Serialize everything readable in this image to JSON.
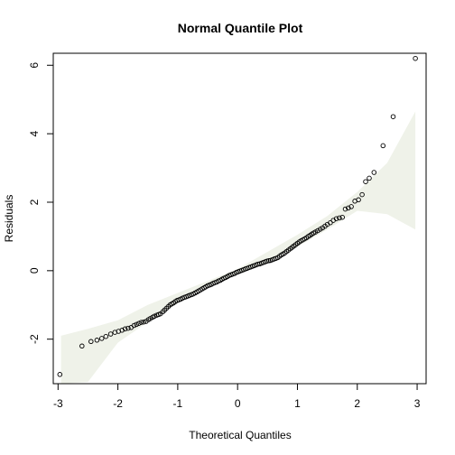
{
  "chart_data": {
    "type": "scatter",
    "title": "Normal Quantile Plot",
    "xlabel": "Theoretical Quantiles",
    "ylabel": "Residuals",
    "xlim": [
      -3.08,
      3.15
    ],
    "ylim": [
      -3.3,
      6.35
    ],
    "xticks": [
      -3,
      -2,
      -1,
      0,
      1,
      2,
      3
    ],
    "yticks": [
      -2,
      0,
      2,
      4,
      6
    ],
    "band_color": "#eff2e9",
    "point_color": "#000000",
    "envelope": {
      "x": [
        -2.95,
        -2.5,
        -2.0,
        -1.5,
        -1.0,
        -0.5,
        0.0,
        0.5,
        1.0,
        1.5,
        2.0,
        2.5,
        2.97
      ],
      "lower": [
        -3.3,
        -3.25,
        -2.1,
        -1.5,
        -0.95,
        -0.45,
        -0.1,
        0.25,
        0.7,
        1.2,
        1.75,
        1.65,
        1.2
      ],
      "upper": [
        -1.9,
        -1.7,
        -1.45,
        -1.0,
        -0.65,
        -0.3,
        0.05,
        0.55,
        1.05,
        1.6,
        2.3,
        3.15,
        4.65
      ]
    },
    "points": [
      [
        -2.97,
        -3.03
      ],
      [
        -2.6,
        -2.2
      ],
      [
        -2.45,
        -2.07
      ],
      [
        -2.35,
        -2.03
      ],
      [
        -2.27,
        -1.98
      ],
      [
        -2.2,
        -1.92
      ],
      [
        -2.12,
        -1.85
      ],
      [
        -2.05,
        -1.8
      ],
      [
        -1.99,
        -1.77
      ],
      [
        -1.93,
        -1.74
      ],
      [
        -1.88,
        -1.7
      ],
      [
        -1.83,
        -1.68
      ],
      [
        -1.78,
        -1.66
      ],
      [
        -1.73,
        -1.6
      ],
      [
        -1.69,
        -1.57
      ],
      [
        -1.65,
        -1.54
      ],
      [
        -1.61,
        -1.51
      ],
      [
        -1.57,
        -1.5
      ],
      [
        -1.53,
        -1.48
      ],
      [
        -1.49,
        -1.43
      ],
      [
        -1.46,
        -1.4
      ],
      [
        -1.42,
        -1.36
      ],
      [
        -1.39,
        -1.33
      ],
      [
        -1.35,
        -1.3
      ],
      [
        -1.32,
        -1.28
      ],
      [
        -1.29,
        -1.26
      ],
      [
        -1.25,
        -1.2
      ],
      [
        -1.22,
        -1.15
      ],
      [
        -1.19,
        -1.1
      ],
      [
        -1.16,
        -1.05
      ],
      [
        -1.13,
        -1.0
      ],
      [
        -1.1,
        -0.97
      ],
      [
        -1.07,
        -0.94
      ],
      [
        -1.04,
        -0.9
      ],
      [
        -1.01,
        -0.87
      ],
      [
        -0.98,
        -0.85
      ],
      [
        -0.95,
        -0.83
      ],
      [
        -0.92,
        -0.8
      ],
      [
        -0.89,
        -0.78
      ],
      [
        -0.86,
        -0.76
      ],
      [
        -0.83,
        -0.74
      ],
      [
        -0.8,
        -0.72
      ],
      [
        -0.77,
        -0.7
      ],
      [
        -0.74,
        -0.68
      ],
      [
        -0.71,
        -0.65
      ],
      [
        -0.68,
        -0.62
      ],
      [
        -0.65,
        -0.59
      ],
      [
        -0.62,
        -0.56
      ],
      [
        -0.59,
        -0.53
      ],
      [
        -0.56,
        -0.5
      ],
      [
        -0.53,
        -0.47
      ],
      [
        -0.5,
        -0.44
      ],
      [
        -0.47,
        -0.42
      ],
      [
        -0.44,
        -0.4
      ],
      [
        -0.41,
        -0.37
      ],
      [
        -0.38,
        -0.35
      ],
      [
        -0.35,
        -0.33
      ],
      [
        -0.32,
        -0.3
      ],
      [
        -0.29,
        -0.28
      ],
      [
        -0.26,
        -0.25
      ],
      [
        -0.23,
        -0.22
      ],
      [
        -0.2,
        -0.2
      ],
      [
        -0.17,
        -0.17
      ],
      [
        -0.14,
        -0.14
      ],
      [
        -0.11,
        -0.12
      ],
      [
        -0.08,
        -0.1
      ],
      [
        -0.05,
        -0.08
      ],
      [
        -0.02,
        -0.05
      ],
      [
        0.01,
        -0.03
      ],
      [
        0.04,
        -0.01
      ],
      [
        0.07,
        0.01
      ],
      [
        0.1,
        0.03
      ],
      [
        0.13,
        0.05
      ],
      [
        0.16,
        0.07
      ],
      [
        0.19,
        0.09
      ],
      [
        0.22,
        0.11
      ],
      [
        0.25,
        0.13
      ],
      [
        0.28,
        0.15
      ],
      [
        0.31,
        0.17
      ],
      [
        0.34,
        0.19
      ],
      [
        0.37,
        0.2
      ],
      [
        0.4,
        0.22
      ],
      [
        0.43,
        0.24
      ],
      [
        0.46,
        0.26
      ],
      [
        0.49,
        0.28
      ],
      [
        0.52,
        0.29
      ],
      [
        0.55,
        0.3
      ],
      [
        0.58,
        0.32
      ],
      [
        0.61,
        0.34
      ],
      [
        0.64,
        0.36
      ],
      [
        0.67,
        0.38
      ],
      [
        0.7,
        0.42
      ],
      [
        0.73,
        0.46
      ],
      [
        0.76,
        0.49
      ],
      [
        0.79,
        0.52
      ],
      [
        0.82,
        0.56
      ],
      [
        0.85,
        0.6
      ],
      [
        0.88,
        0.64
      ],
      [
        0.91,
        0.68
      ],
      [
        0.94,
        0.72
      ],
      [
        0.97,
        0.76
      ],
      [
        1.0,
        0.8
      ],
      [
        1.03,
        0.84
      ],
      [
        1.06,
        0.87
      ],
      [
        1.09,
        0.9
      ],
      [
        1.12,
        0.93
      ],
      [
        1.15,
        0.96
      ],
      [
        1.18,
        1.0
      ],
      [
        1.21,
        1.03
      ],
      [
        1.24,
        1.07
      ],
      [
        1.27,
        1.1
      ],
      [
        1.3,
        1.13
      ],
      [
        1.34,
        1.17
      ],
      [
        1.38,
        1.21
      ],
      [
        1.42,
        1.25
      ],
      [
        1.46,
        1.3
      ],
      [
        1.5,
        1.35
      ],
      [
        1.55,
        1.4
      ],
      [
        1.6,
        1.47
      ],
      [
        1.65,
        1.52
      ],
      [
        1.7,
        1.54
      ],
      [
        1.75,
        1.56
      ],
      [
        1.8,
        1.8
      ],
      [
        1.85,
        1.83
      ],
      [
        1.9,
        1.87
      ],
      [
        1.96,
        2.03
      ],
      [
        2.02,
        2.07
      ],
      [
        2.08,
        2.22
      ],
      [
        2.14,
        2.6
      ],
      [
        2.2,
        2.7
      ],
      [
        2.28,
        2.87
      ],
      [
        2.43,
        3.65
      ],
      [
        2.6,
        4.5
      ],
      [
        2.97,
        6.2
      ]
    ]
  }
}
